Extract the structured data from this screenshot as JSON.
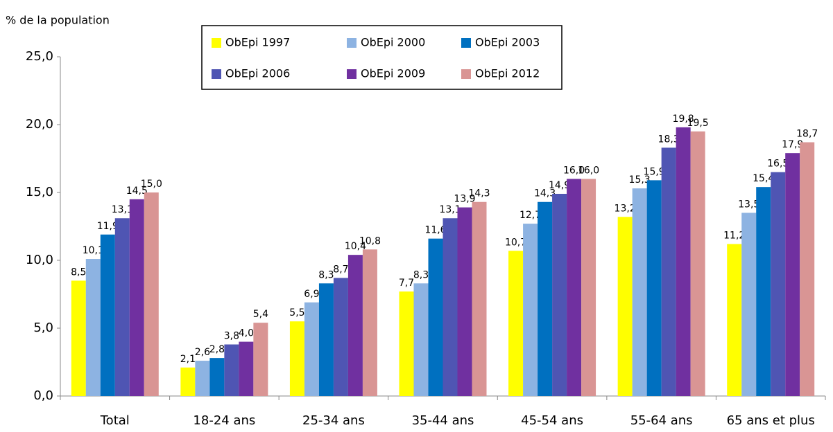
{
  "chart_data": {
    "type": "bar",
    "y_axis_label": "% de la population",
    "categories": [
      "Total",
      "18-24 ans",
      "25-34 ans",
      "35-44 ans",
      "45-54 ans",
      "55-64 ans",
      "65 ans et plus"
    ],
    "series": [
      {
        "name": "ObEpi 1997",
        "color": "#ffff00",
        "values": [
          8.5,
          2.1,
          5.5,
          7.7,
          10.7,
          13.2,
          11.2
        ],
        "value_labels": [
          "8,5",
          "2,1",
          "5,5",
          "7,7",
          "10,7",
          "13,2",
          "11,2"
        ]
      },
      {
        "name": "ObEpi 2000",
        "color": "#8db3e2",
        "values": [
          10.1,
          2.6,
          6.9,
          8.3,
          12.7,
          15.3,
          13.5
        ],
        "value_labels": [
          "10,1",
          "2,6",
          "6,9",
          "8,3",
          "12,7",
          "15,3",
          "13,5"
        ]
      },
      {
        "name": "ObEpi 2003",
        "color": "#0070c0",
        "values": [
          11.9,
          2.8,
          8.3,
          11.6,
          14.3,
          15.9,
          15.4
        ],
        "value_labels": [
          "11,9",
          "2,8",
          "8,3",
          "11,6",
          "14,3",
          "15,9",
          "15,4"
        ]
      },
      {
        "name": "ObEpi 2006",
        "color": "#4f55b3",
        "values": [
          13.1,
          3.8,
          8.7,
          13.1,
          14.9,
          18.3,
          16.5
        ],
        "value_labels": [
          "13,1",
          "3,8",
          "8,7",
          "13,1",
          "14,9",
          "18,3",
          "16,5"
        ]
      },
      {
        "name": "ObEpi 2009",
        "color": "#7030a0",
        "values": [
          14.5,
          4.0,
          10.4,
          13.9,
          16.0,
          19.8,
          17.9
        ],
        "value_labels": [
          "14,5",
          "4,0",
          "10,4",
          "13,9",
          "16,0",
          "19,8",
          "17,9"
        ]
      },
      {
        "name": "ObEpi 2012",
        "color": "#d99594",
        "values": [
          15.0,
          5.4,
          10.8,
          14.3,
          16.0,
          19.5,
          18.7
        ],
        "value_labels": [
          "15,0",
          "5,4",
          "10,8",
          "14,3",
          "16,0",
          "19,5",
          "18,7"
        ]
      }
    ],
    "ylim": [
      0,
      25
    ],
    "yticks": [
      {
        "value": 0,
        "label": "0,0"
      },
      {
        "value": 5,
        "label": "5,0"
      },
      {
        "value": 10,
        "label": "10,0"
      },
      {
        "value": 15,
        "label": "15,0"
      },
      {
        "value": 20,
        "label": "20,0"
      },
      {
        "value": 25,
        "label": "25,0"
      }
    ],
    "grid": false
  }
}
